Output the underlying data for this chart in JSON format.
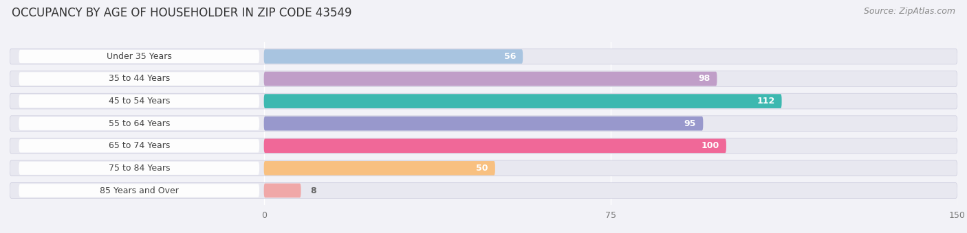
{
  "title": "OCCUPANCY BY AGE OF HOUSEHOLDER IN ZIP CODE 43549",
  "source": "Source: ZipAtlas.com",
  "categories": [
    "Under 35 Years",
    "35 to 44 Years",
    "45 to 54 Years",
    "55 to 64 Years",
    "65 to 74 Years",
    "75 to 84 Years",
    "85 Years and Over"
  ],
  "values": [
    56,
    98,
    112,
    95,
    100,
    50,
    8
  ],
  "bar_colors": [
    "#a8c4e0",
    "#c09ec8",
    "#3db8b0",
    "#9898cc",
    "#f06898",
    "#f8c080",
    "#f0a8a8"
  ],
  "xlim": [
    0,
    150
  ],
  "xticks": [
    0,
    75,
    150
  ],
  "bar_height": 0.68,
  "background_color": "#f2f2f7",
  "bar_bg_color": "#e2e2ea",
  "row_bg_color": "#e8e8f0",
  "title_fontsize": 12,
  "source_fontsize": 9,
  "label_fontsize": 9,
  "value_fontsize": 9,
  "label_pill_color": "#ffffff",
  "label_text_color": "#444444",
  "value_color_inside": "#ffffff",
  "value_color_outside": "#666666"
}
